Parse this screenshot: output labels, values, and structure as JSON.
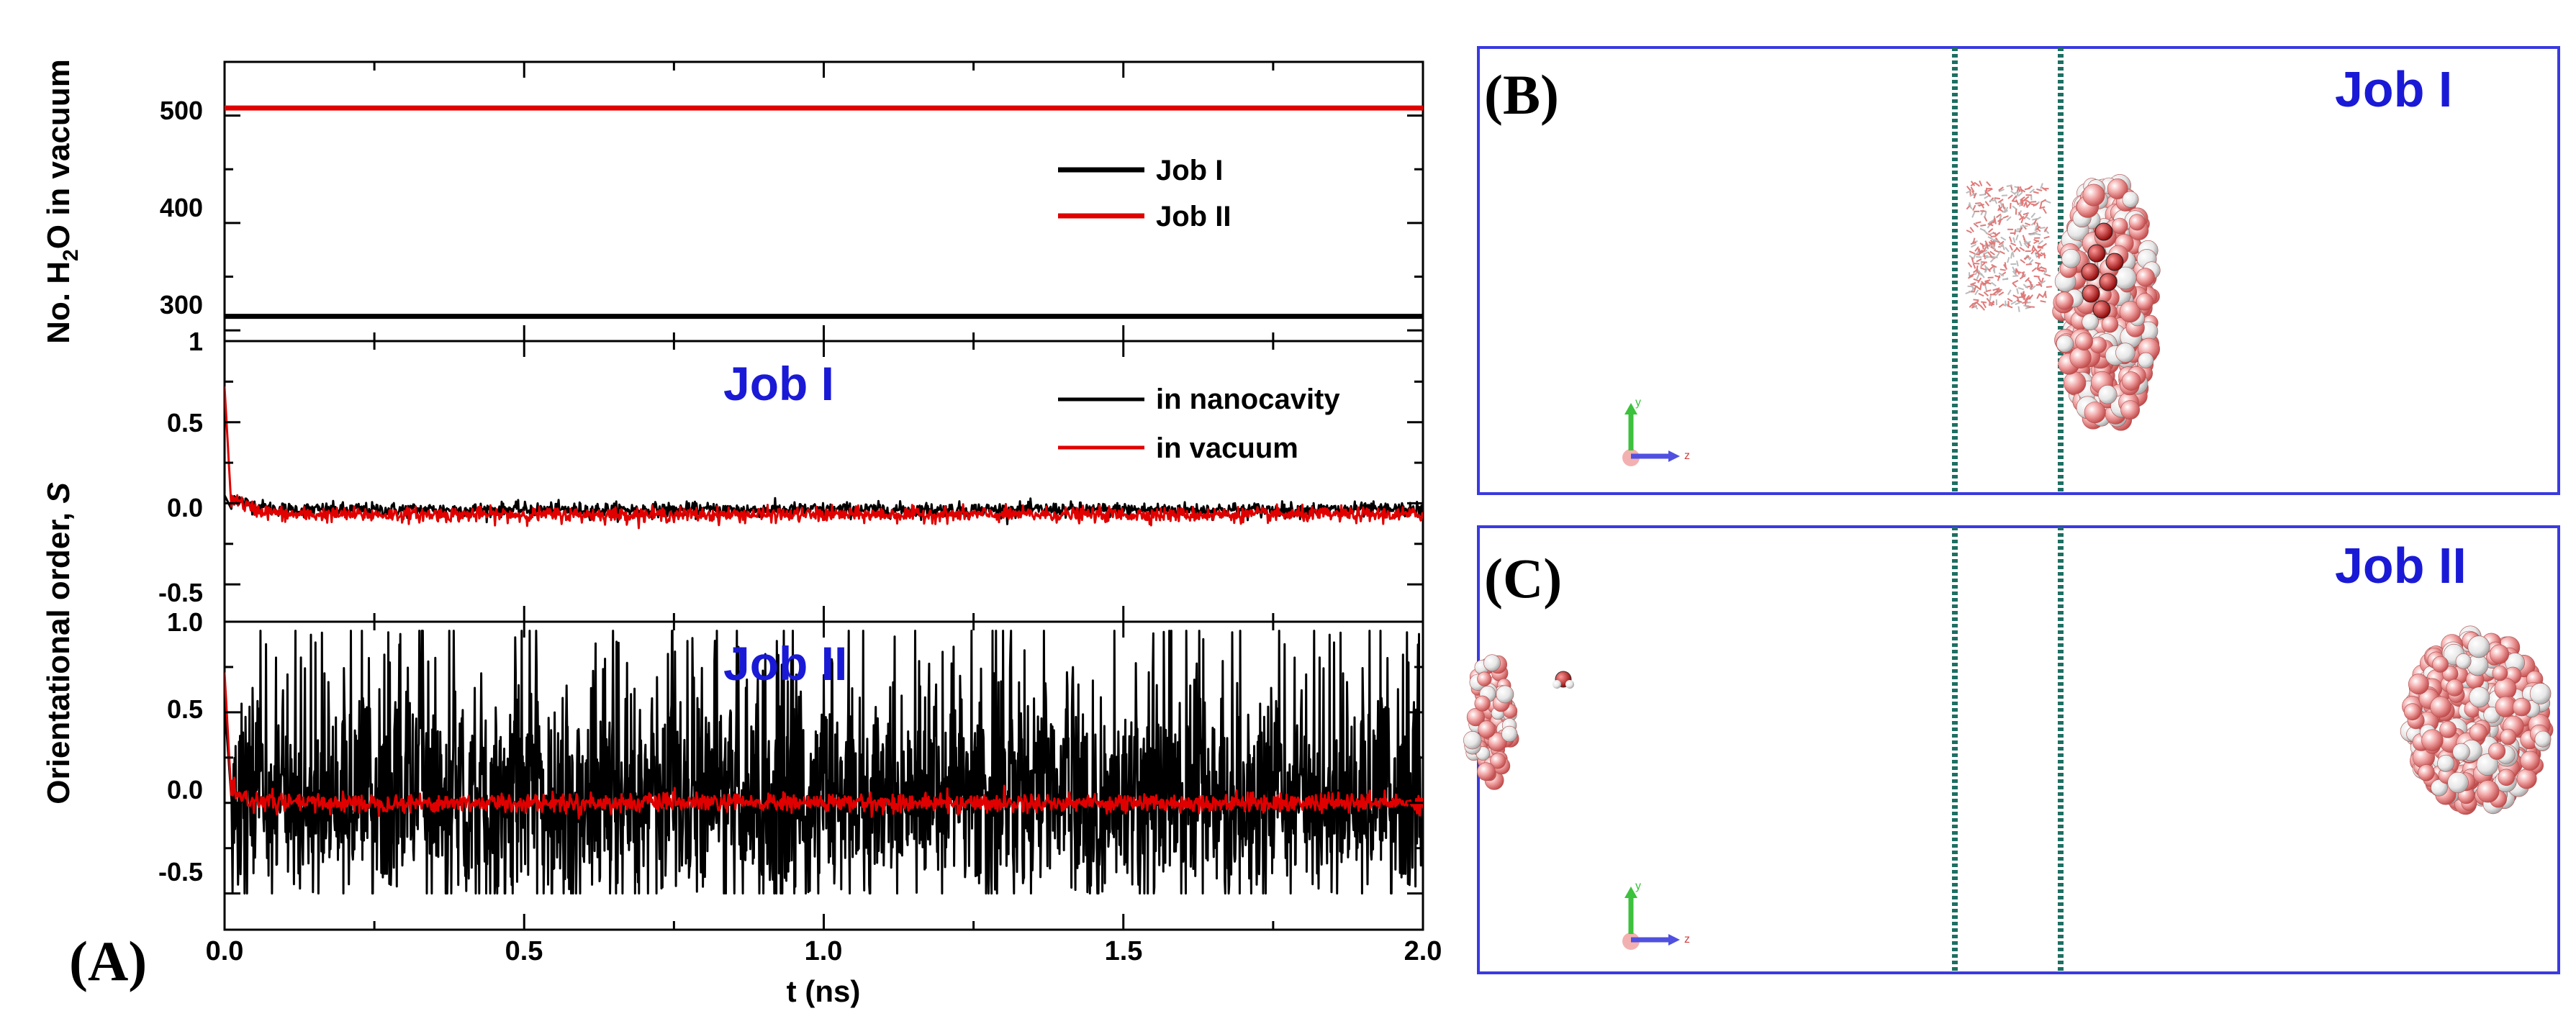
{
  "panel_a": {
    "label": "(A)",
    "x_axis": {
      "label": "t (ns)",
      "range": [
        0.0,
        2.0
      ],
      "ticks": [
        "0.0",
        "0.5",
        "1.0",
        "1.5",
        "2.0"
      ]
    },
    "colors": {
      "black": "#000000",
      "red": "#e00000",
      "blue_label": "#1a1ad6"
    }
  },
  "chart_data": [
    {
      "type": "line",
      "id": "top",
      "ylabel": "No. H2O in vacuum",
      "ylim": [
        290,
        550
      ],
      "yticks": [
        300,
        400,
        500
      ],
      "x": [
        0.0,
        2.0
      ],
      "series": [
        {
          "name": "Job I",
          "style": "black",
          "values": [
            313,
            313
          ]
        },
        {
          "name": "Job II",
          "style": "red",
          "values": [
            507,
            507
          ]
        }
      ],
      "legend": [
        "Job I",
        "Job II"
      ]
    },
    {
      "type": "line",
      "id": "middle",
      "annotation": "Job I",
      "ylim": [
        -0.73,
        1.0
      ],
      "yticks": [
        -0.5,
        0.0,
        0.5,
        1.0
      ],
      "series": [
        {
          "name": "in nanocavity",
          "style": "black",
          "start": 0.05,
          "plateau": -0.04,
          "noise": 0.022
        },
        {
          "name": "in vacuum",
          "style": "red",
          "start": 0.72,
          "plateau": -0.07,
          "noise": 0.022
        }
      ],
      "legend": [
        "in nanocavity",
        "in vacuum"
      ]
    },
    {
      "type": "line",
      "id": "bottom",
      "annotation": "Job II",
      "ylim": [
        -0.7,
        1.0
      ],
      "yticks": [
        -0.5,
        0.0,
        0.5,
        1.0
      ],
      "series": [
        {
          "name": "in nanocavity",
          "style": "black",
          "start": 0.55,
          "plateau": 0.0,
          "noise": 0.4
        },
        {
          "name": "in vacuum",
          "style": "red",
          "start": 0.72,
          "plateau": 0.0,
          "noise": 0.025
        }
      ]
    }
  ],
  "shared_ylabel": "Orientational order, ",
  "shared_ylabel_symbol": "S",
  "panel_b": {
    "label": "(B)",
    "job": "Job I"
  },
  "panel_c": {
    "label": "(C)",
    "job": "Job II"
  },
  "axes_icon": {
    "y": "y",
    "z": "z"
  }
}
